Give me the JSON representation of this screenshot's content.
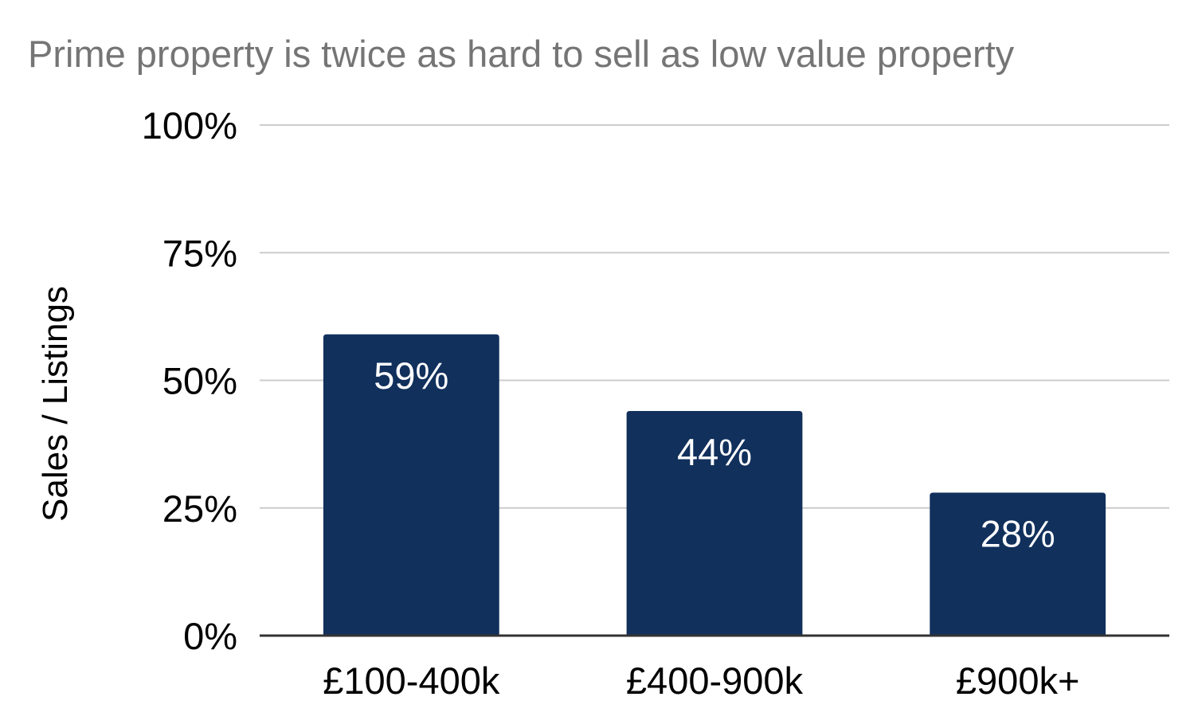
{
  "chart_data": {
    "type": "bar",
    "title": "Prime property is twice as hard to sell as low value property",
    "xlabel": "",
    "ylabel": "Sales / Listings",
    "categories": [
      "£100-400k",
      "£400-900k",
      "£900k+"
    ],
    "values": [
      59,
      44,
      28
    ],
    "data_labels": [
      "59%",
      "44%",
      "28%"
    ],
    "ylim": [
      0,
      100
    ],
    "yticks": [
      0,
      25,
      50,
      75,
      100
    ],
    "ytick_labels": [
      "0%",
      "25%",
      "50%",
      "75%",
      "100%"
    ],
    "grid": true,
    "legend": "none",
    "colors": {
      "bar": "#11305c",
      "grid": "#cccccc",
      "axis": "#333333",
      "title": "#757575"
    }
  }
}
